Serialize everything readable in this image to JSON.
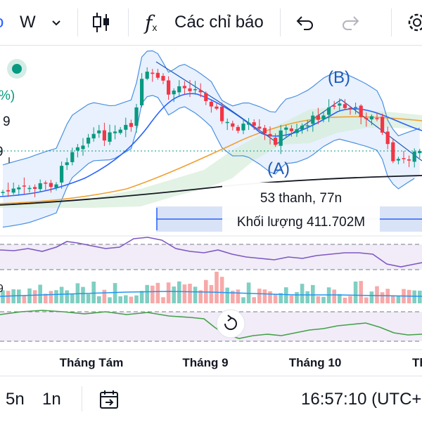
{
  "toolbar": {
    "interval": "W",
    "indicators_label": "Các chỉ báo",
    "icons": [
      "chevron-down-icon",
      "candlestick-icon",
      "function-icon",
      "undo-icon",
      "redo-icon",
      "settings-icon"
    ]
  },
  "chart": {
    "left_labels": [
      "%)",
      "9",
      "9"
    ],
    "wave_labels": {
      "a": "(A)",
      "b": "(B)"
    },
    "tooltip": {
      "line1": "53 thanh, 77n",
      "line2": "Khối lượng 411.702M"
    },
    "months": [
      "Tháng Tám",
      "Tháng 9",
      "Tháng 10",
      "Th"
    ],
    "colors": {
      "up": "#089981",
      "down": "#f23645",
      "upvol": "#7fcfc2",
      "downvol": "#f7a9a9",
      "rsi": "#7e57c2",
      "blue": "#2962ff",
      "orange": "#f0a030",
      "green": "#43a047"
    }
  },
  "bottom": {
    "intervals": [
      "5n",
      "1n"
    ],
    "time": "16:57:10 (UTC+"
  }
}
